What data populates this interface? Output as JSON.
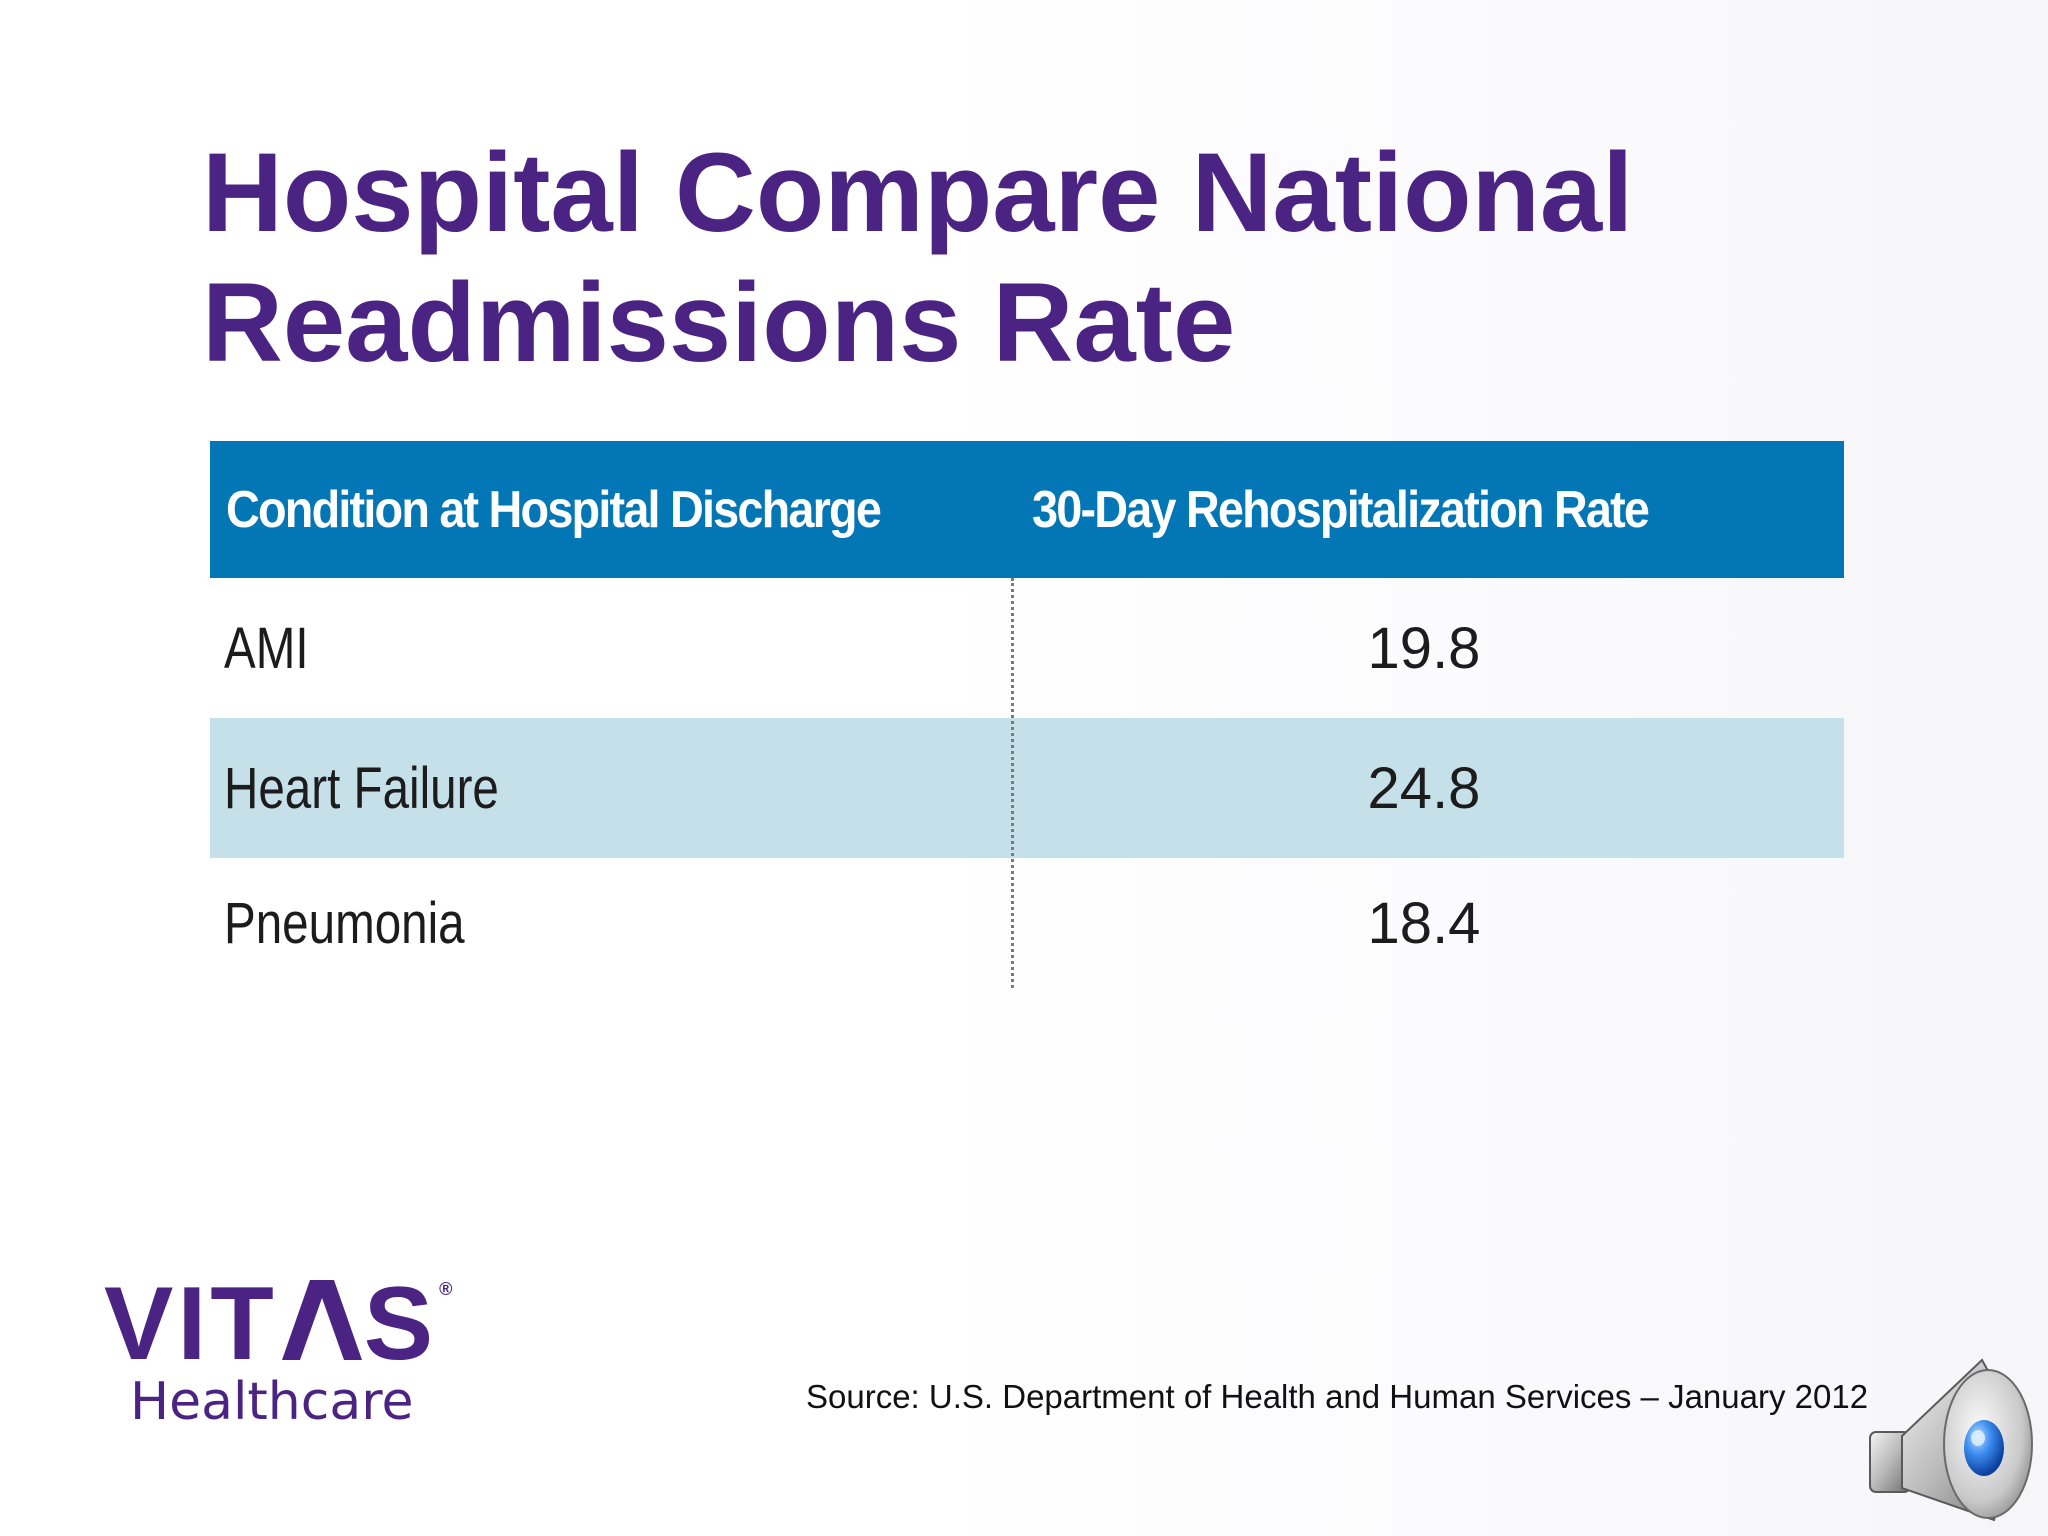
{
  "slide": {
    "title_line1": "Hospital Compare National",
    "title_line2": "Readmissions Rate"
  },
  "table": {
    "headers": [
      "Condition at Hospital Discharge",
      "30-Day Rehospitalization Rate"
    ],
    "rows": [
      {
        "condition": "AMI",
        "rate": "19.8"
      },
      {
        "condition": "Heart Failure",
        "rate": "24.8"
      },
      {
        "condition": "Pneumonia",
        "rate": "18.4"
      }
    ]
  },
  "logo": {
    "brand_part1": "VIT",
    "brand_part2": "S",
    "registered_mark": "®",
    "subtitle": "Healthcare"
  },
  "source_text": "Source: U.S. Department of Health and Human Services – January 2012",
  "icons": {
    "audio": "speaker-icon"
  },
  "colors": {
    "title": "#4b2483",
    "table_header_bg": "#0376b6",
    "table_alt_row_bg": "#c5e0e9",
    "brand": "#4b2483"
  }
}
